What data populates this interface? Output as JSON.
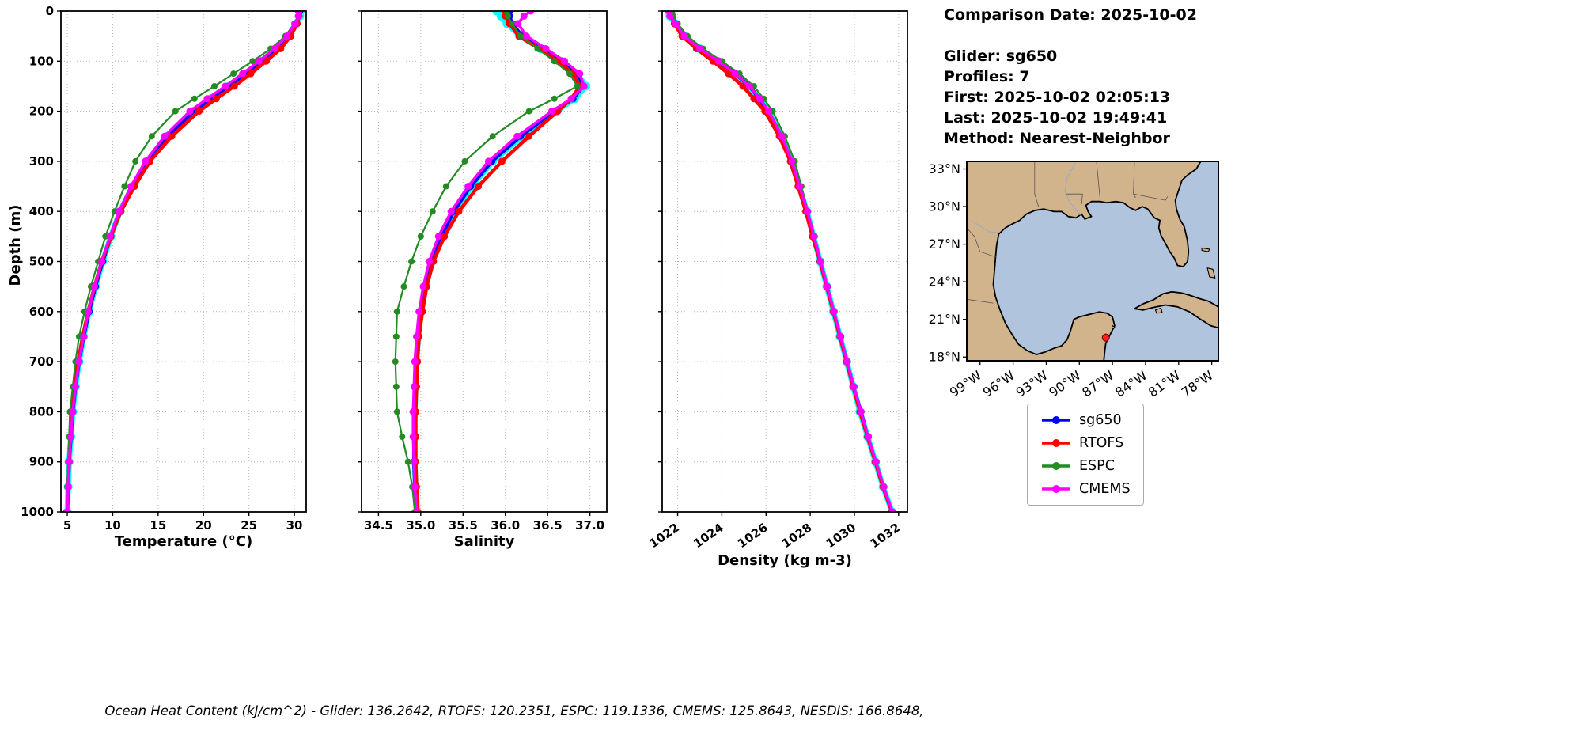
{
  "info_panel": {
    "comparison_date": "Comparison Date: 2025-10-02",
    "glider": "Glider: sg650",
    "profiles": "Profiles: 7",
    "first": "First: 2025-10-02 02:05:13",
    "last": "Last: 2025-10-02 19:49:41",
    "method": "Method: Nearest-Neighbor"
  },
  "footer": {
    "ohc_text": "Ocean Heat Content (kJ/cm^2) - Glider: 136.2642,  RTOFS: 120.2351,  ESPC: 119.1336,  CMEMS: 125.8643,  NESDIS: 166.8648,"
  },
  "legend": {
    "entries": [
      {
        "label": "sg650",
        "color": "#0000FF"
      },
      {
        "label": "RTOFS",
        "color": "#FF0000"
      },
      {
        "label": "ESPC",
        "color": "#228B22"
      },
      {
        "label": "CMEMS",
        "color": "#FF00FF"
      }
    ]
  },
  "map": {
    "land_color": "#D2B48C",
    "water_color": "#B0C4DE",
    "coast_color": "#000000",
    "lat_tick_values": [
      33,
      30,
      27,
      24,
      21,
      18
    ],
    "lat_tick_labels": [
      "33°N",
      "30°N",
      "27°N",
      "24°N",
      "21°N",
      "18°N"
    ],
    "lon_tick_values": [
      -99,
      -96,
      -93,
      -90,
      -87,
      -84,
      -81,
      -78
    ],
    "lon_tick_labels": [
      "99°W",
      "96°W",
      "93°W",
      "90°W",
      "87°W",
      "84°W",
      "81°W",
      "78°W"
    ],
    "extent": {
      "lon_min": -100.2,
      "lon_max": -77.4,
      "lat_min": 17.7,
      "lat_max": 33.6
    },
    "glider_marker": {
      "lon": -87.6,
      "lat": 19.55,
      "color": "#FF2020"
    }
  },
  "chart_data": {
    "type": "line",
    "orientation": "depth-profile",
    "ylabel": "Depth (m)",
    "ylim": [
      0,
      1000
    ],
    "yticks": [
      0,
      100,
      200,
      300,
      400,
      500,
      600,
      700,
      800,
      900,
      1000
    ],
    "grid": "dotted",
    "depths": [
      0,
      10,
      25,
      50,
      75,
      100,
      125,
      150,
      175,
      200,
      250,
      300,
      350,
      400,
      450,
      500,
      550,
      600,
      650,
      700,
      750,
      800,
      850,
      900,
      950,
      1000
    ],
    "panels": [
      {
        "field": "temperature",
        "xlabel": "Temperature (°C)",
        "xlim": [
          4.3,
          31.3
        ],
        "xticks": [
          5,
          10,
          15,
          20,
          25,
          30
        ],
        "tick_format": "int",
        "tick_rotation": 0
      },
      {
        "field": "salinity",
        "xlabel": "Salinity",
        "xlim": [
          34.3,
          37.2
        ],
        "xticks": [
          34.5,
          35.0,
          35.5,
          36.0,
          36.5,
          37.0
        ],
        "tick_format": "1dp",
        "tick_rotation": 0
      },
      {
        "field": "density",
        "xlabel": "Density (kg m-3)",
        "xlim": [
          1021.3,
          1032.4
        ],
        "xticks": [
          1022,
          1024,
          1026,
          1028,
          1030,
          1032
        ],
        "tick_format": "int",
        "tick_rotation": -35
      }
    ],
    "series": [
      {
        "name": "glider-raw",
        "label": "",
        "color": "#00FFFF",
        "in_legend": false,
        "temperature": [
          30.7,
          30.6,
          30.2,
          29.3,
          28.0,
          26.3,
          24.6,
          22.8,
          20.8,
          18.9,
          16.0,
          13.8,
          12.2,
          10.8,
          9.8,
          8.9,
          8.1,
          7.4,
          6.8,
          6.3,
          5.9,
          5.6,
          5.4,
          5.2,
          5.1,
          5.0
        ],
        "salinity": [
          35.9,
          35.95,
          36.02,
          36.18,
          36.42,
          36.65,
          36.85,
          36.95,
          36.82,
          36.6,
          36.2,
          35.85,
          35.6,
          35.4,
          35.25,
          35.13,
          35.05,
          35.0,
          34.97,
          34.95,
          34.94,
          34.93,
          34.93,
          34.93,
          34.94,
          34.96
        ],
        "density": [
          1021.6,
          1021.65,
          1021.9,
          1022.3,
          1023.0,
          1023.8,
          1024.6,
          1025.2,
          1025.7,
          1026.1,
          1026.7,
          1027.15,
          1027.5,
          1027.85,
          1028.15,
          1028.45,
          1028.75,
          1029.05,
          1029.35,
          1029.65,
          1029.95,
          1030.25,
          1030.6,
          1030.95,
          1031.3,
          1031.7
        ]
      },
      {
        "name": "sg650",
        "label": "sg650",
        "color": "#0000FF",
        "in_legend": true,
        "temperature": [
          30.6,
          30.5,
          30.2,
          29.3,
          28.0,
          26.3,
          24.6,
          22.8,
          20.8,
          18.9,
          16.0,
          13.8,
          12.2,
          10.8,
          9.8,
          8.9,
          8.1,
          7.4,
          6.8,
          6.3,
          5.9,
          5.6,
          5.4,
          5.2,
          5.1,
          5.0
        ],
        "salinity": [
          36.05,
          36.05,
          36.08,
          36.2,
          36.45,
          36.67,
          36.86,
          36.92,
          36.8,
          36.58,
          36.18,
          35.84,
          35.59,
          35.39,
          35.24,
          35.12,
          35.04,
          34.99,
          34.96,
          34.94,
          34.93,
          34.92,
          34.92,
          34.92,
          34.93,
          34.95
        ],
        "density": [
          1021.65,
          1021.7,
          1021.9,
          1022.3,
          1023.0,
          1023.85,
          1024.6,
          1025.25,
          1025.7,
          1026.1,
          1026.7,
          1027.15,
          1027.5,
          1027.85,
          1028.15,
          1028.45,
          1028.75,
          1029.05,
          1029.35,
          1029.65,
          1029.95,
          1030.3,
          1030.6,
          1030.95,
          1031.3,
          1031.7
        ]
      },
      {
        "name": "RTOFS",
        "label": "RTOFS",
        "color": "#FF0000",
        "in_legend": true,
        "temperature": [
          30.5,
          30.5,
          30.3,
          29.6,
          28.5,
          26.9,
          25.2,
          23.4,
          21.4,
          19.5,
          16.5,
          14.1,
          12.4,
          10.9,
          9.8,
          8.8,
          8.0,
          7.3,
          6.7,
          6.2,
          5.8,
          5.5,
          5.3,
          5.2,
          5.1,
          5.0
        ],
        "salinity": [
          36.0,
          36.0,
          36.05,
          36.16,
          36.4,
          36.62,
          36.8,
          36.88,
          36.78,
          36.62,
          36.28,
          35.96,
          35.68,
          35.45,
          35.28,
          35.15,
          35.07,
          35.02,
          34.98,
          34.96,
          34.95,
          34.94,
          34.94,
          34.94,
          34.95,
          34.96
        ],
        "density": [
          1021.7,
          1021.7,
          1021.85,
          1022.2,
          1022.85,
          1023.6,
          1024.3,
          1024.95,
          1025.45,
          1025.95,
          1026.6,
          1027.1,
          1027.45,
          1027.8,
          1028.1,
          1028.45,
          1028.75,
          1029.05,
          1029.35,
          1029.65,
          1029.95,
          1030.25,
          1030.6,
          1030.95,
          1031.3,
          1031.7
        ]
      },
      {
        "name": "ESPC",
        "label": "ESPC",
        "color": "#228B22",
        "in_legend": true,
        "temperature": [
          30.4,
          30.4,
          30.0,
          29.0,
          27.4,
          25.4,
          23.3,
          21.2,
          19.0,
          16.9,
          14.3,
          12.5,
          11.3,
          10.2,
          9.2,
          8.4,
          7.6,
          6.9,
          6.3,
          5.9,
          5.6,
          5.3,
          5.2,
          5.1,
          5.0,
          4.9
        ],
        "salinity": [
          36.02,
          36.03,
          36.08,
          36.18,
          36.38,
          36.58,
          36.76,
          36.85,
          36.58,
          36.28,
          35.85,
          35.52,
          35.3,
          35.14,
          35.0,
          34.89,
          34.8,
          34.72,
          34.71,
          34.7,
          34.71,
          34.72,
          34.78,
          34.85,
          34.9,
          34.93
        ],
        "density": [
          1021.75,
          1021.8,
          1022.0,
          1022.45,
          1023.15,
          1024.0,
          1024.8,
          1025.45,
          1025.9,
          1026.3,
          1026.85,
          1027.3,
          1027.6,
          1027.9,
          1028.2,
          1028.5,
          1028.8,
          1029.1,
          1029.4,
          1029.7,
          1030.0,
          1030.3,
          1030.65,
          1031.0,
          1031.35,
          1031.7
        ]
      },
      {
        "name": "CMEMS",
        "label": "CMEMS",
        "color": "#FF00FF",
        "in_legend": true,
        "temperature": [
          30.5,
          30.5,
          30.1,
          29.2,
          27.8,
          26.1,
          24.3,
          22.4,
          20.4,
          18.5,
          15.7,
          13.6,
          12.0,
          10.7,
          9.7,
          8.8,
          8.0,
          7.3,
          6.8,
          6.3,
          5.9,
          5.6,
          5.4,
          5.2,
          5.1,
          5.0
        ],
        "salinity": [
          36.3,
          36.22,
          36.15,
          36.25,
          36.48,
          36.7,
          36.88,
          36.93,
          36.78,
          36.55,
          36.14,
          35.8,
          35.56,
          35.36,
          35.21,
          35.1,
          35.03,
          34.98,
          34.95,
          34.93,
          34.92,
          34.91,
          34.91,
          34.92,
          34.93,
          34.95
        ],
        "density": [
          1021.6,
          1021.65,
          1021.9,
          1022.3,
          1023.0,
          1023.85,
          1024.6,
          1025.25,
          1025.72,
          1026.12,
          1026.72,
          1027.17,
          1027.52,
          1027.87,
          1028.17,
          1028.47,
          1028.77,
          1029.07,
          1029.37,
          1029.67,
          1029.97,
          1030.3,
          1030.62,
          1030.97,
          1031.32,
          1031.72
        ]
      }
    ]
  }
}
